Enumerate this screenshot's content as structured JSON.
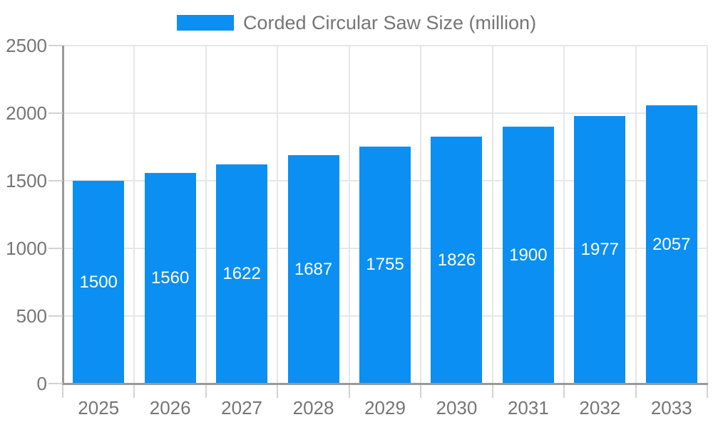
{
  "legend": {
    "label": "Corded Circular Saw Size (million)"
  },
  "chart_data": {
    "type": "bar",
    "title": "Corded Circular Saw Size (million)",
    "categories": [
      "2025",
      "2026",
      "2027",
      "2028",
      "2029",
      "2030",
      "2031",
      "2032",
      "2033"
    ],
    "values": [
      1500,
      1560,
      1622,
      1687,
      1755,
      1826,
      1900,
      1977,
      2057
    ],
    "series": [
      {
        "name": "Corded Circular Saw Size (million)",
        "values": [
          1500,
          1560,
          1622,
          1687,
          1755,
          1826,
          1900,
          1977,
          2057
        ]
      }
    ],
    "xlabel": "",
    "ylabel": "",
    "ylim": [
      0,
      2500
    ],
    "yticks": [
      0,
      500,
      1000,
      1500,
      2000,
      2500
    ],
    "grid": true,
    "legend_position": "top-center",
    "value_labels": "centered-inside-bars",
    "colors": {
      "bar": "#0b8ff2",
      "bar_label": "#ffffff",
      "axis_text": "#757575",
      "axis_line": "#999999",
      "tick_mark": "#d2d2d2",
      "grid_line": "#e6e6e6",
      "background": "#ffffff"
    }
  }
}
